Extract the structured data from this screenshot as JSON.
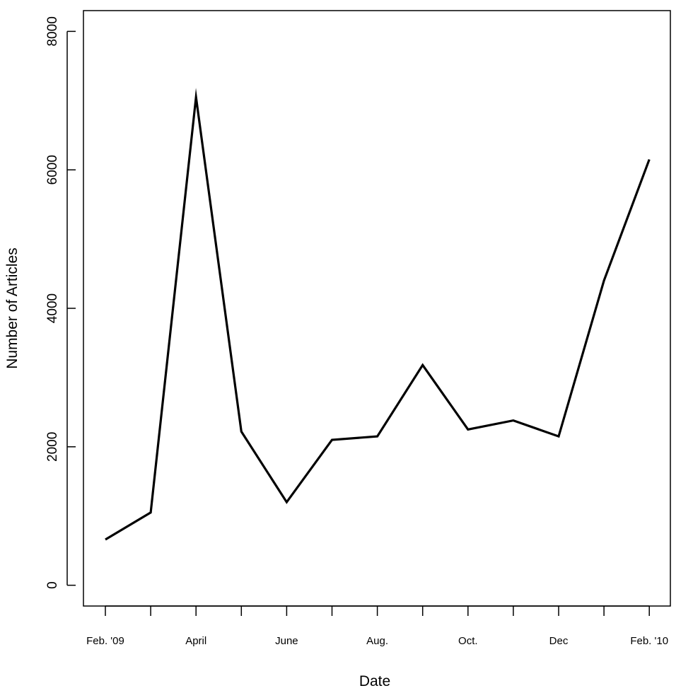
{
  "chart_data": {
    "type": "line",
    "title": "",
    "xlabel": "Date",
    "ylabel": "Number of Articles",
    "x_tick_labels": [
      "Feb. '09",
      "",
      "April",
      "",
      "June",
      "",
      "Aug.",
      "",
      "Oct.",
      "",
      "Dec",
      "",
      "Feb. '10"
    ],
    "y_ticks": [
      0,
      2000,
      4000,
      6000,
      8000
    ],
    "y_tick_labels": [
      "0",
      "2000",
      "4000",
      "6000",
      "8000"
    ],
    "ylim": [
      -300,
      8300
    ],
    "grid": false,
    "legend": "none",
    "line_color": "#000000",
    "series": [
      {
        "values": [
          660,
          1050,
          7050,
          2220,
          1200,
          2100,
          2150,
          3180,
          2250,
          2380,
          2150,
          4400,
          6150
        ]
      }
    ]
  }
}
